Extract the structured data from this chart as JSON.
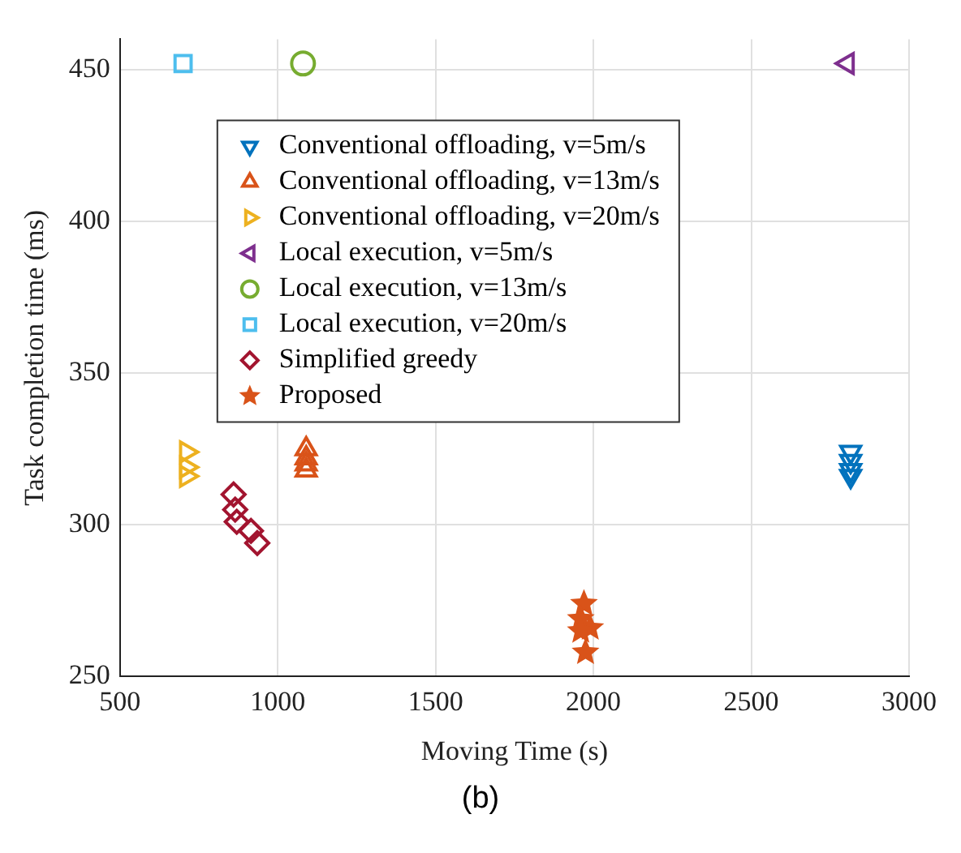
{
  "chart_data": {
    "type": "scatter",
    "xlabel": "Moving Time (s)",
    "ylabel": "Task completion time (ms)",
    "xlim": [
      500,
      3000
    ],
    "xticks": [
      500,
      1000,
      1500,
      2000,
      2500,
      3000
    ],
    "ylim": [
      250,
      460
    ],
    "yticks": [
      250,
      300,
      350,
      400,
      450
    ],
    "grid": true,
    "legend": "top left",
    "annotations": [
      "(b)"
    ],
    "series": [
      {
        "name": "Conventional offloading, v=5m/s",
        "color": "#0072bd",
        "marker": "triangle-down",
        "x": [
          2815,
          2815,
          2815,
          2815
        ],
        "values": [
          324,
          321,
          318,
          316
        ]
      },
      {
        "name": "Conventional offloading, v=13m/s",
        "color": "#d95319",
        "marker": "triangle",
        "x": [
          1090,
          1090,
          1090,
          1090
        ],
        "values": [
          325,
          322,
          320,
          318
        ]
      },
      {
        "name": "Conventional offloading, v=20m/s",
        "color": "#edb120",
        "marker": "triangle-right",
        "x": [
          710,
          710,
          710
        ],
        "values": [
          324,
          319,
          316
        ]
      },
      {
        "name": "Local execution, v=5m/s",
        "color": "#7e2f8e",
        "marker": "triangle-left",
        "x": [
          2805
        ],
        "values": [
          452
        ]
      },
      {
        "name": "Local execution, v=13m/s",
        "color": "#77ac30",
        "marker": "circle",
        "x": [
          1080
        ],
        "values": [
          452
        ]
      },
      {
        "name": "Local execution, v=20m/s",
        "color": "#4dbeee",
        "marker": "square",
        "x": [
          700
        ],
        "values": [
          452
        ]
      },
      {
        "name": "Simplified greedy",
        "color": "#a2142f",
        "marker": "diamond",
        "x": [
          860,
          865,
          870,
          915,
          935
        ],
        "values": [
          310,
          305,
          301,
          298,
          294
        ]
      },
      {
        "name": "Proposed",
        "color": "#d95319",
        "marker": "star",
        "x": [
          1970,
          1960,
          1990,
          1960,
          1975
        ],
        "values": [
          274,
          269,
          266,
          265,
          258
        ]
      }
    ]
  }
}
